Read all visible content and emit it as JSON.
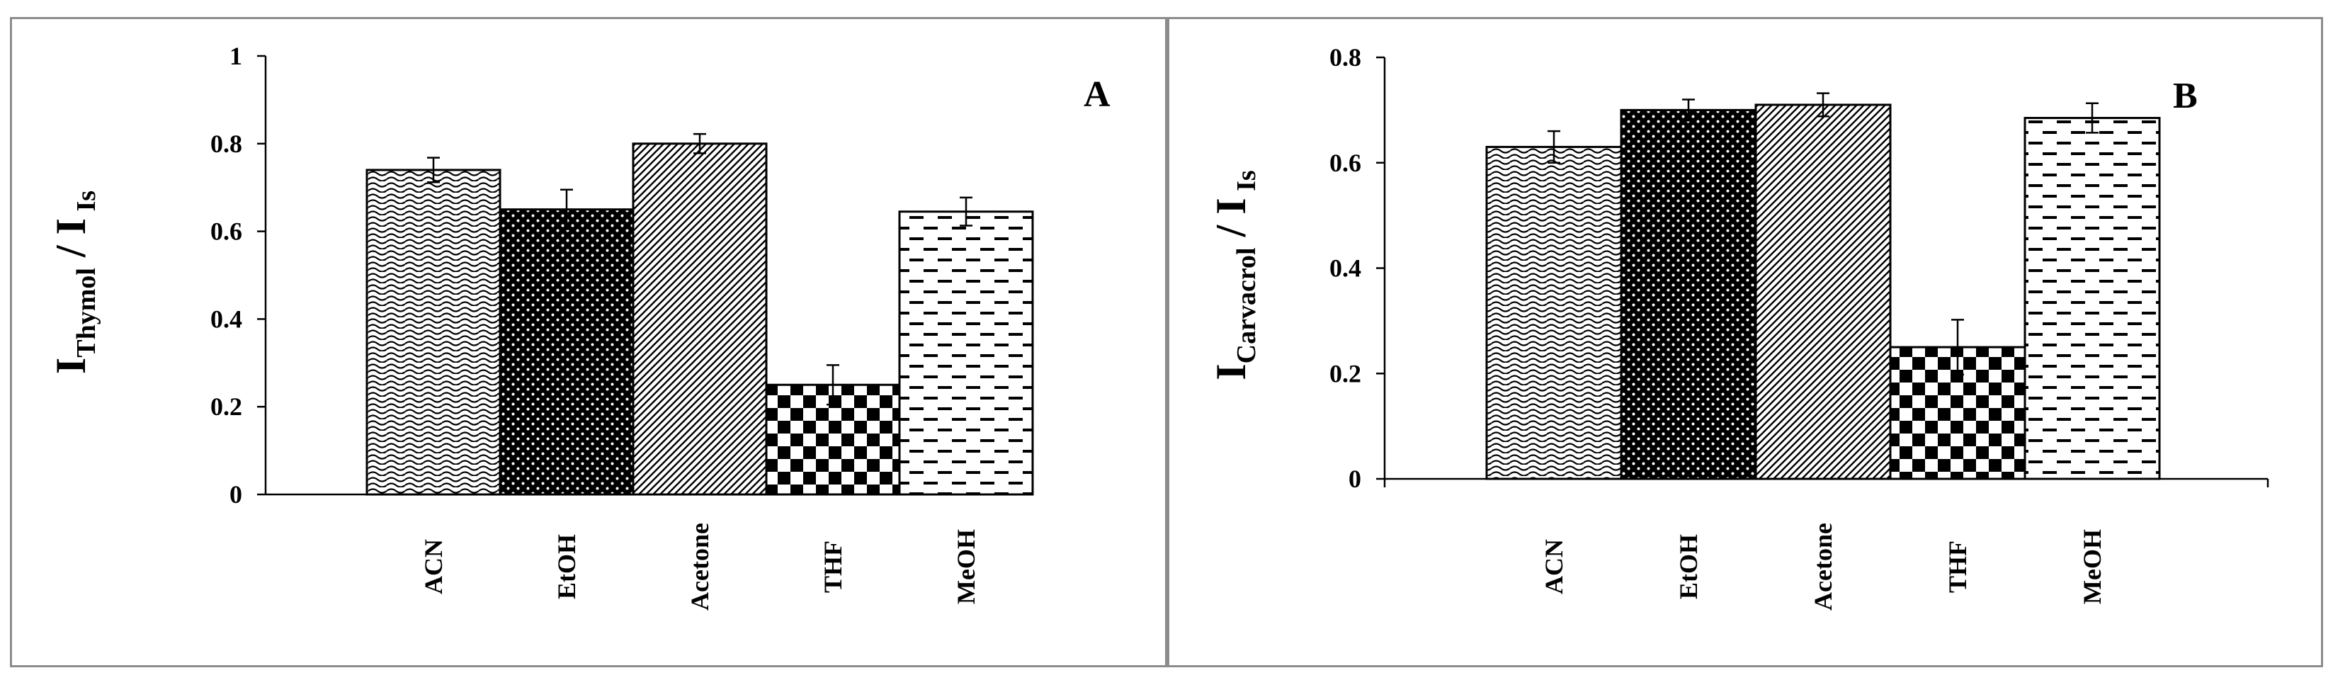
{
  "chart_data": [
    {
      "type": "bar",
      "panel_label": "A",
      "ylabel_main": "I",
      "ylabel_sub": "Thymol",
      "ylabel_sep": " / I",
      "ylabel_sub2": "Is",
      "categories": [
        "ACN",
        "EtOH",
        "Acetone",
        "THF",
        "MeOH"
      ],
      "values": [
        0.74,
        0.65,
        0.8,
        0.25,
        0.645
      ],
      "errors": [
        0.028,
        0.045,
        0.022,
        0.045,
        0.032
      ],
      "patterns": [
        "wave",
        "dots",
        "diagonal",
        "checker",
        "dash"
      ],
      "ylim": [
        0,
        1
      ],
      "yticks": [
        "0",
        "0.2",
        "0.4",
        "0.6",
        "0.8",
        "1"
      ],
      "ytick_values": [
        0,
        0.2,
        0.4,
        0.6,
        0.8,
        1.0
      ]
    },
    {
      "type": "bar",
      "panel_label": "B",
      "ylabel_main": "I",
      "ylabel_sub": "Carvacrol",
      "ylabel_sep": " / I",
      "ylabel_sub2": "Is",
      "categories": [
        "ACN",
        "EtOH",
        "Acetone",
        "THF",
        "MeOH"
      ],
      "values": [
        0.63,
        0.7,
        0.71,
        0.25,
        0.685
      ],
      "errors": [
        0.03,
        0.02,
        0.022,
        0.052,
        0.028
      ],
      "patterns": [
        "wave",
        "dots",
        "diagonal",
        "checker",
        "dash"
      ],
      "ylim": [
        0,
        0.8
      ],
      "yticks": [
        "0",
        "0.2",
        "0.4",
        "0.6",
        "0.8"
      ],
      "ytick_values": [
        0,
        0.2,
        0.4,
        0.6,
        0.8
      ]
    }
  ]
}
